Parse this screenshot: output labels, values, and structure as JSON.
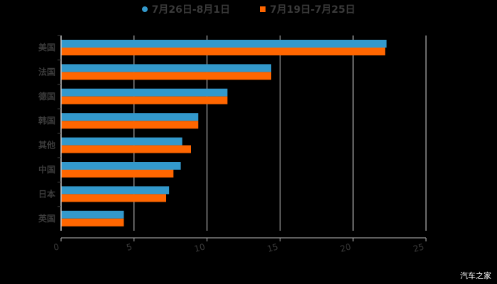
{
  "chart_data": {
    "type": "bar",
    "orientation": "horizontal",
    "title": "",
    "xlabel": "",
    "ylabel": "",
    "categories": [
      "美国",
      "法国",
      "德国",
      "韩国",
      "其他",
      "中国",
      "日本",
      "英国"
    ],
    "series": [
      {
        "name": "7月26日-8月1日",
        "color": "#3399cc",
        "values": [
          22.3,
          14.4,
          11.4,
          9.4,
          8.3,
          8.2,
          7.4,
          4.3
        ]
      },
      {
        "name": "7月19日-7月25日",
        "color": "#ff6600",
        "values": [
          22.2,
          14.4,
          11.4,
          9.4,
          8.9,
          7.7,
          7.2,
          4.3
        ]
      }
    ],
    "xlim": [
      0,
      25
    ],
    "xticks": [
      "0",
      "5",
      "10",
      "15",
      "20",
      "25"
    ],
    "grid": true,
    "legend_position": "top"
  },
  "legend": {
    "items": [
      {
        "label": "7月26日-8月1日",
        "color": "#3399cc",
        "marker": "circle"
      },
      {
        "label": "7月19日-7月25日",
        "color": "#ff6600",
        "marker": "square"
      }
    ]
  },
  "watermark": "汽车之家"
}
